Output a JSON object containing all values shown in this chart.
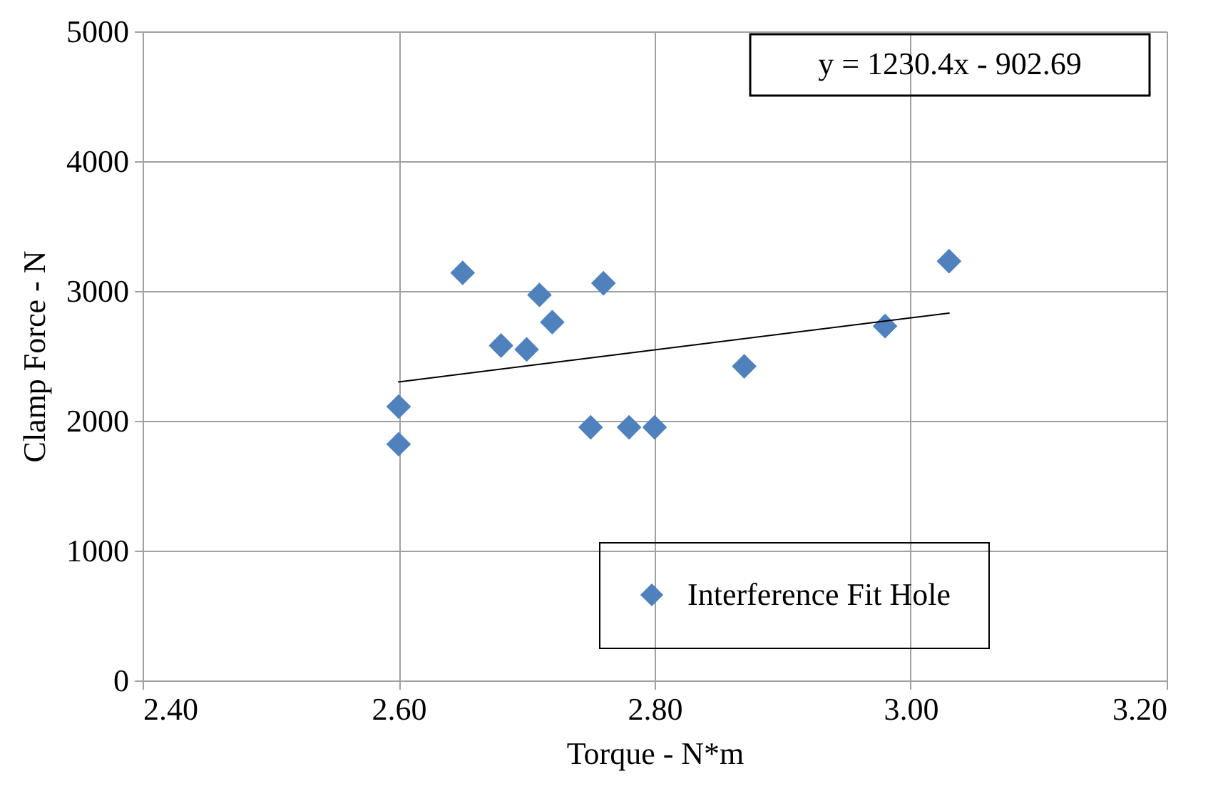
{
  "chart_data": {
    "type": "scatter",
    "xlabel": "Torque - N*m",
    "ylabel": "Clamp Force - N",
    "xlim": [
      2.4,
      3.2
    ],
    "xticks": [
      {
        "value": 2.4,
        "label": "2.40"
      },
      {
        "value": 2.6,
        "label": "2.60"
      },
      {
        "value": 2.8,
        "label": "2.80"
      },
      {
        "value": 3.0,
        "label": "3.00"
      },
      {
        "value": 3.2,
        "label": "3.20"
      }
    ],
    "ylim": [
      0,
      5000
    ],
    "yticks": [
      0,
      1000,
      2000,
      3000,
      4000,
      5000
    ],
    "grid": true,
    "legend": "bottom right",
    "annotations": [
      "y = 1230.4x  - 902.69"
    ],
    "series": [
      {
        "name": "Interference Fit Hole",
        "color": "#4f81bd",
        "marker": "diamond",
        "x": [
          2.6,
          2.6,
          2.65,
          2.68,
          2.7,
          2.71,
          2.72,
          2.75,
          2.76,
          2.78,
          2.8,
          2.87,
          2.98,
          3.03
        ],
        "values": [
          2110,
          1820,
          3140,
          2580,
          2550,
          2970,
          2760,
          1950,
          3060,
          1950,
          1950,
          2420,
          2730,
          3230
        ]
      },
      {
        "type": "line",
        "color": "#000000",
        "marker": "none",
        "x": [
          2.6,
          3.03
        ],
        "values": [
          2300,
          2830
        ]
      }
    ]
  }
}
